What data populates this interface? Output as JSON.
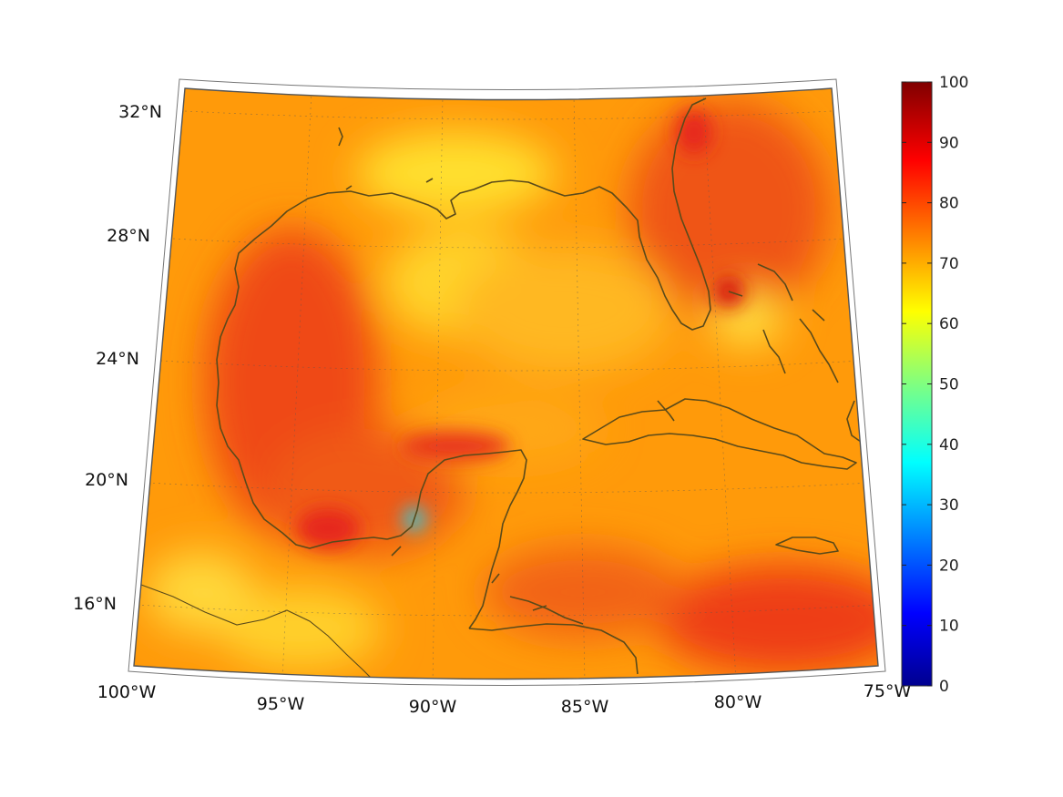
{
  "map": {
    "lon_labels": [
      "100°W",
      "95°W",
      "90°W",
      "85°W",
      "80°W",
      "75°W"
    ],
    "lat_labels": [
      "32°N",
      "28°N",
      "24°N",
      "20°N",
      "16°N"
    ],
    "colormap": "jet",
    "colors": {
      "coastline": "#5a4a1a",
      "dominant_field": "#ff9800",
      "high_field": "#e83a14",
      "low_anomaly": "#2ec9d8"
    }
  },
  "colorbar": {
    "min": 0,
    "max": 100,
    "tick_labels": [
      "100",
      "90",
      "80",
      "70",
      "60",
      "50",
      "40",
      "30",
      "20",
      "10",
      "0"
    ]
  }
}
